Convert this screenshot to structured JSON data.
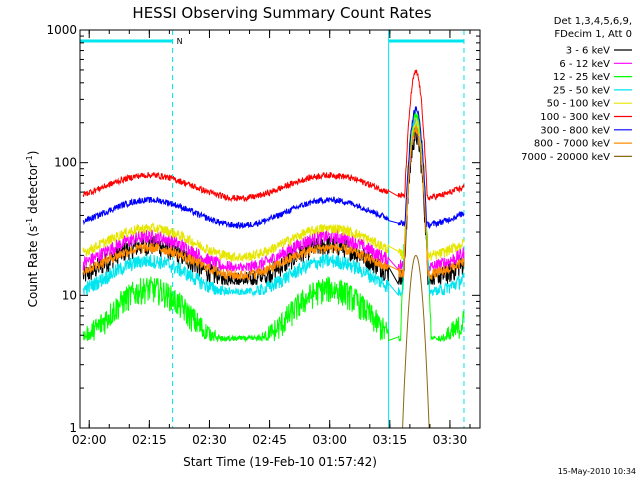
{
  "chart_data": {
    "type": "line",
    "title": "HESSI Observing Summary Count Rates",
    "xlabel": "Start Time (19-Feb-10 01:57:42)",
    "ylabel_main": "Count Rate (s",
    "ylabel_sup1": "-1",
    "ylabel_mid": " detector",
    "ylabel_sup2": "-1",
    "ylabel_end": ")",
    "yscale": "log",
    "ylim": [
      1,
      1000
    ],
    "xlim_minutes": [
      117.7,
      217.5
    ],
    "x_ticks": [
      {
        "value": 120,
        "label": "02:00"
      },
      {
        "value": 135,
        "label": "02:15"
      },
      {
        "value": 150,
        "label": "02:30"
      },
      {
        "value": 165,
        "label": "02:45"
      },
      {
        "value": 180,
        "label": "03:00"
      },
      {
        "value": 195,
        "label": "03:15"
      },
      {
        "value": 210,
        "label": "03:30"
      }
    ],
    "y_ticks": [
      {
        "value": 1,
        "label": "1"
      },
      {
        "value": 10,
        "label": "10"
      },
      {
        "value": 100,
        "label": "100"
      },
      {
        "value": 1000,
        "label": "1000"
      }
    ],
    "legend_header": [
      "Det 1,3,4,5,6,9,",
      "FDecim 1, Att 0"
    ],
    "legend_placement": "right",
    "night_intervals": [
      [
        117.7,
        140.8
      ],
      [
        194.7,
        213.5
      ]
    ],
    "night_flag_label": "N",
    "series": [
      {
        "name": "3 - 6 keV",
        "color": "#000000",
        "quiet_mean": 17.5,
        "orbit_amp": 0.32,
        "flare_peak": 160,
        "noise": 0.1,
        "min_value": 12
      },
      {
        "name": "6 - 12 keV",
        "color": "#ff00ff",
        "quiet_mean": 21,
        "orbit_amp": 0.28,
        "flare_peak": 190,
        "noise": 0.07,
        "min_value": 15
      },
      {
        "name": "12 - 25 keV",
        "color": "#00ff00",
        "quiet_mean": 6.5,
        "orbit_amp": 0.55,
        "flare_peak": 235,
        "noise": 0.13,
        "min_value": 4.5
      },
      {
        "name": "25 - 50 keV",
        "color": "#00e5ee",
        "quiet_mean": 13.5,
        "orbit_amp": 0.3,
        "flare_peak": 210,
        "noise": 0.07,
        "min_value": 10
      },
      {
        "name": "50 - 100 keV",
        "color": "#e6e600",
        "quiet_mean": 25,
        "orbit_amp": 0.25,
        "flare_peak": 205,
        "noise": 0.05,
        "min_value": 18
      },
      {
        "name": "100 - 300 keV",
        "color": "#ff0000",
        "quiet_mean": 66,
        "orbit_amp": 0.2,
        "flare_peak": 480,
        "noise": 0.03,
        "min_value": 48
      },
      {
        "name": "300 - 800 keV",
        "color": "#0000ff",
        "quiet_mean": 42,
        "orbit_amp": 0.22,
        "flare_peak": 255,
        "noise": 0.03,
        "min_value": 30
      },
      {
        "name": "800 - 7000 keV",
        "color": "#ff8c00",
        "quiet_mean": 18,
        "orbit_amp": 0.24,
        "flare_peak": 175,
        "noise": 0.05,
        "min_value": 13
      },
      {
        "name": "7000 - 20000 keV",
        "color": "#8b6914",
        "quiet_mean": 0.5,
        "orbit_amp": 0.0,
        "flare_peak": 20,
        "noise": 0.0,
        "min_value": 0.5
      }
    ],
    "flare_time": 201.5,
    "flare_start": 197.5,
    "flare_end": 205.2,
    "data_start": 118.5,
    "data_end": 213.5,
    "gap_interval": [
      194.7,
      197.0
    ]
  },
  "timestamp": "15-May-2010 10:34"
}
